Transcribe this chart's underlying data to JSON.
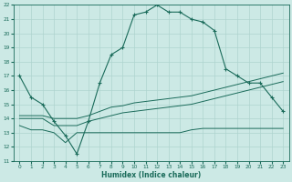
{
  "xlabel": "Humidex (Indice chaleur)",
  "xlim": [
    -0.5,
    23.5
  ],
  "ylim": [
    11,
    22
  ],
  "xticks": [
    0,
    1,
    2,
    3,
    4,
    5,
    6,
    7,
    8,
    9,
    10,
    11,
    12,
    13,
    14,
    15,
    16,
    17,
    18,
    19,
    20,
    21,
    22,
    23
  ],
  "yticks": [
    11,
    12,
    13,
    14,
    15,
    16,
    17,
    18,
    19,
    20,
    21,
    22
  ],
  "bg_color": "#cce9e5",
  "line_color": "#1a6b5a",
  "grid_color": "#aed4cf",
  "line1_x": [
    0,
    1,
    2,
    3,
    4,
    5,
    6,
    7,
    8,
    9,
    10,
    11,
    12,
    13,
    14,
    15,
    16,
    17,
    18,
    19,
    20,
    21,
    22,
    23
  ],
  "line1_y": [
    17.0,
    15.5,
    15.0,
    13.8,
    12.8,
    11.5,
    13.8,
    16.5,
    18.5,
    19.0,
    21.3,
    21.5,
    22.0,
    21.5,
    21.5,
    21.0,
    20.8,
    20.2,
    17.5,
    17.0,
    16.5,
    16.5,
    15.5,
    14.5
  ],
  "line2_x": [
    0,
    1,
    2,
    3,
    4,
    5,
    6,
    7,
    8,
    9,
    10,
    11,
    12,
    13,
    14,
    15,
    16,
    17,
    18,
    19,
    20,
    21,
    22,
    23
  ],
  "line2_y": [
    14.2,
    14.2,
    14.2,
    14.0,
    14.0,
    14.0,
    14.2,
    14.5,
    14.8,
    14.9,
    15.1,
    15.2,
    15.3,
    15.4,
    15.5,
    15.6,
    15.8,
    16.0,
    16.2,
    16.4,
    16.6,
    16.8,
    17.0,
    17.2
  ],
  "line3_x": [
    0,
    1,
    2,
    3,
    4,
    5,
    6,
    7,
    8,
    9,
    10,
    11,
    12,
    13,
    14,
    15,
    16,
    17,
    18,
    19,
    20,
    21,
    22,
    23
  ],
  "line3_y": [
    14.0,
    14.0,
    14.0,
    13.5,
    13.5,
    13.5,
    13.8,
    14.0,
    14.2,
    14.4,
    14.5,
    14.6,
    14.7,
    14.8,
    14.9,
    15.0,
    15.2,
    15.4,
    15.6,
    15.8,
    16.0,
    16.2,
    16.4,
    16.6
  ],
  "line4_x": [
    0,
    1,
    2,
    3,
    4,
    5,
    6,
    7,
    8,
    9,
    10,
    11,
    12,
    13,
    14,
    15,
    16,
    17,
    18,
    19,
    20,
    21,
    22,
    23
  ],
  "line4_y": [
    13.5,
    13.2,
    13.2,
    13.0,
    12.3,
    13.0,
    13.0,
    13.0,
    13.0,
    13.0,
    13.0,
    13.0,
    13.0,
    13.0,
    13.0,
    13.2,
    13.3,
    13.3,
    13.3,
    13.3,
    13.3,
    13.3,
    13.3,
    13.3
  ]
}
